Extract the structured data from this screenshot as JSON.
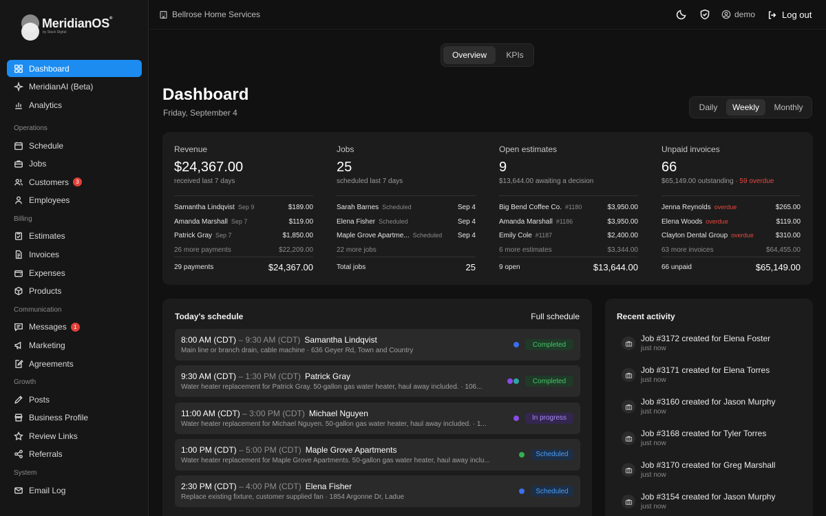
{
  "brand": {
    "name": "MeridianOS",
    "tagline": "by Stack Digital",
    "trademark": "®"
  },
  "sidebar": {
    "top": [
      {
        "label": "Dashboard",
        "icon": "grid-icon",
        "active": true
      },
      {
        "label": "MeridianAI (Beta)",
        "icon": "sparkle-icon"
      },
      {
        "label": "Analytics",
        "icon": "bar-chart-icon"
      }
    ],
    "sections": [
      {
        "title": "Operations",
        "items": [
          {
            "label": "Schedule",
            "icon": "calendar-icon"
          },
          {
            "label": "Jobs",
            "icon": "briefcase-icon"
          },
          {
            "label": "Customers",
            "icon": "users-icon",
            "badge": "3"
          },
          {
            "label": "Employees",
            "icon": "user-icon"
          }
        ]
      },
      {
        "title": "Billing",
        "items": [
          {
            "label": "Estimates",
            "icon": "clipboard-icon"
          },
          {
            "label": "Invoices",
            "icon": "document-icon"
          },
          {
            "label": "Expenses",
            "icon": "wallet-icon"
          },
          {
            "label": "Products",
            "icon": "box-icon"
          }
        ]
      },
      {
        "title": "Communication",
        "items": [
          {
            "label": "Messages",
            "icon": "message-icon",
            "badge": "1"
          },
          {
            "label": "Marketing",
            "icon": "megaphone-icon"
          },
          {
            "label": "Agreements",
            "icon": "edit-document-icon"
          }
        ]
      },
      {
        "title": "Growth",
        "items": [
          {
            "label": "Posts",
            "icon": "pencil-icon"
          },
          {
            "label": "Business Profile",
            "icon": "storefront-icon"
          },
          {
            "label": "Review Links",
            "icon": "star-icon"
          },
          {
            "label": "Referrals",
            "icon": "share-icon"
          }
        ]
      },
      {
        "title": "System",
        "items": [
          {
            "label": "Email Log",
            "icon": "mail-icon"
          }
        ]
      }
    ]
  },
  "topbar": {
    "company": "Bellrose Home Services",
    "user": "demo",
    "logout": "Log out"
  },
  "view_tabs": [
    "Overview",
    "KPIs"
  ],
  "page": {
    "title": "Dashboard",
    "date": "Friday, September 4"
  },
  "period_tabs": [
    "Daily",
    "Weekly",
    "Monthly"
  ],
  "kpis": [
    {
      "label": "Revenue",
      "value": "$24,367.00",
      "sub": "received last 7 days",
      "sub_extra": "",
      "rows": [
        {
          "name": "Samantha Lindqvist",
          "meta": "Sep 9",
          "meta_red": false,
          "value": "$189.00"
        },
        {
          "name": "Amanda Marshall",
          "meta": "Sep 7",
          "meta_red": false,
          "value": "$119.00"
        },
        {
          "name": "Patrick Gray",
          "meta": "Sep 7",
          "meta_red": false,
          "value": "$1,850.00"
        }
      ],
      "more": {
        "label": "26 more payments",
        "value": "$22,209.00"
      },
      "total": {
        "label": "29 payments",
        "value": "$24,367.00"
      }
    },
    {
      "label": "Jobs",
      "value": "25",
      "sub": "scheduled last 7 days",
      "sub_extra": "",
      "rows": [
        {
          "name": "Sarah Barnes",
          "meta": "Scheduled",
          "meta_red": false,
          "value": "Sep 4"
        },
        {
          "name": "Elena Fisher",
          "meta": "Scheduled",
          "meta_red": false,
          "value": "Sep 4"
        },
        {
          "name": "Maple Grove Apartme...",
          "meta": "Scheduled",
          "meta_red": false,
          "value": "Sep 4"
        }
      ],
      "more": {
        "label": "22 more jobs",
        "value": ""
      },
      "total": {
        "label": "Total jobs",
        "value": "25"
      }
    },
    {
      "label": "Open estimates",
      "value": "9",
      "sub": "$13,644.00 awaiting a decision",
      "sub_extra": "",
      "rows": [
        {
          "name": "Big Bend Coffee Co.",
          "meta": "#1180",
          "meta_red": false,
          "value": "$3,950.00"
        },
        {
          "name": "Amanda Marshall",
          "meta": "#1186",
          "meta_red": false,
          "value": "$3,950.00"
        },
        {
          "name": "Emily Cole",
          "meta": "#1187",
          "meta_red": false,
          "value": "$2,400.00"
        }
      ],
      "more": {
        "label": "6 more estimates",
        "value": "$3,344.00"
      },
      "total": {
        "label": "9 open",
        "value": "$13,644.00"
      }
    },
    {
      "label": "Unpaid invoices",
      "value": "66",
      "sub": "$65,149.00 outstanding",
      "sub_extra": "· 59 overdue",
      "rows": [
        {
          "name": "Jenna Reynolds",
          "meta": "overdue",
          "meta_red": true,
          "value": "$265.00"
        },
        {
          "name": "Elena Woods",
          "meta": "overdue",
          "meta_red": true,
          "value": "$119.00"
        },
        {
          "name": "Clayton Dental Group",
          "meta": "overdue",
          "meta_red": true,
          "value": "$310.00"
        }
      ],
      "more": {
        "label": "63 more invoices",
        "value": "$64,455.00"
      },
      "total": {
        "label": "66 unpaid",
        "value": "$65,149.00"
      }
    }
  ],
  "schedule": {
    "title": "Today's schedule",
    "link": "Full schedule",
    "items": [
      {
        "start": "8:00 AM (CDT)",
        "end": "– 9:30 AM (CDT)",
        "who": "Samantha Lindqvist",
        "detail": "Main line or branch drain, cable machine · 636 Geyer Rd, Town and Country",
        "dots": [
          "#3b6ff0"
        ],
        "status": "Completed",
        "status_color": "#47c46a",
        "status_bg": "#1f3a27"
      },
      {
        "start": "9:30 AM (CDT)",
        "end": "– 1:30 PM (CDT)",
        "who": "Patrick Gray",
        "detail": "Water heater replacement for Patrick Gray. 50-gallon gas water heater, haul away included. · 106...",
        "dots": [
          "#8a4be8",
          "#2aa7a0"
        ],
        "status": "Completed",
        "status_color": "#47c46a",
        "status_bg": "#1f3a27"
      },
      {
        "start": "11:00 AM (CDT)",
        "end": "– 3:00 PM (CDT)",
        "who": "Michael Nguyen",
        "detail": "Water heater replacement for Michael Nguyen. 50-gallon gas water heater, haul away included. · 1...",
        "dots": [
          "#8a4be8"
        ],
        "status": "In progress",
        "status_color": "#a98af2",
        "status_bg": "#33264f"
      },
      {
        "start": "1:00 PM (CDT)",
        "end": "– 5:00 PM (CDT)",
        "who": "Maple Grove Apartments",
        "detail": "Water heater replacement for Maple Grove Apartments. 50-gallon gas water heater, haul away inclu...",
        "dots": [
          "#2fb24f"
        ],
        "status": "Scheduled",
        "status_color": "#4c9cf2",
        "status_bg": "#1d2f47"
      },
      {
        "start": "2:30 PM (CDT)",
        "end": "– 4:00 PM (CDT)",
        "who": "Elena Fisher",
        "detail": "Replace existing fixture, customer supplied fan · 1854 Argonne Dr, Ladue",
        "dots": [
          "#3b6ff0"
        ],
        "status": "Scheduled",
        "status_color": "#4c9cf2",
        "status_bg": "#1d2f47"
      }
    ]
  },
  "activity": {
    "title": "Recent activity",
    "items": [
      {
        "text": "Job #3172 created for Elena Foster",
        "when": "just now"
      },
      {
        "text": "Job #3171 created for Elena Torres",
        "when": "just now"
      },
      {
        "text": "Job #3160 created for Jason Murphy",
        "when": "just now"
      },
      {
        "text": "Job #3168 created for Tyler Torres",
        "when": "just now"
      },
      {
        "text": "Job #3170 created for Greg Marshall",
        "when": "just now"
      },
      {
        "text": "Job #3154 created for Jason Murphy",
        "when": "just now"
      }
    ]
  }
}
